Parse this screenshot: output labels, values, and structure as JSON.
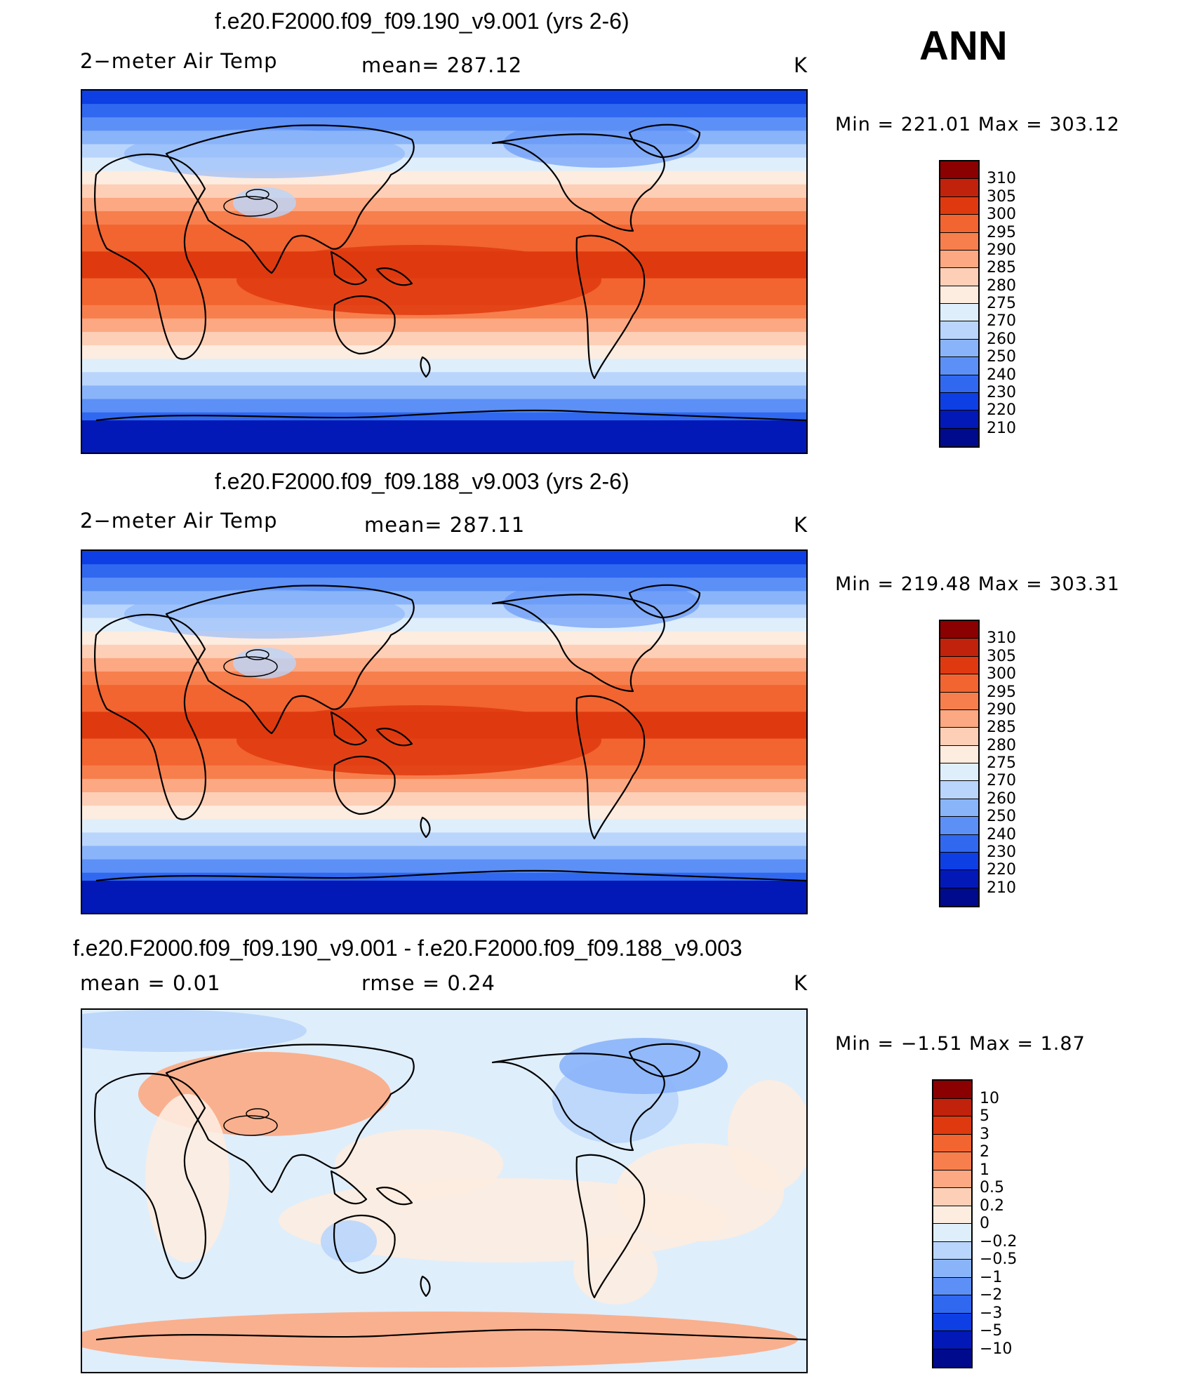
{
  "season": "ANN",
  "panels": [
    {
      "title": "f.e20.F2000.f09_f09.190_v9.001 (yrs 2-6)",
      "left_label": "2−meter Air Temp",
      "center_label": "mean=  287.12",
      "units": "K",
      "minmax": "Min  =  221.01  Max  =  303.12",
      "kind": "abs",
      "colorbar": {
        "levels": [
          "310",
          "305",
          "300",
          "295",
          "290",
          "285",
          "280",
          "275",
          "270",
          "260",
          "250",
          "240",
          "230",
          "220",
          "210"
        ],
        "colors": [
          "#8b0000",
          "#c1220c",
          "#df3a0f",
          "#f26430",
          "#f77f4d",
          "#fca882",
          "#fdcfb6",
          "#fdece0",
          "#dfeefb",
          "#b9d5fb",
          "#8ab4fa",
          "#5c90f6",
          "#3068f0",
          "#0d3fe4",
          "#0219b7",
          "#000a8c"
        ]
      }
    },
    {
      "title": "f.e20.F2000.f09_f09.188_v9.003 (yrs 2-6)",
      "left_label": "2−meter Air Temp",
      "center_label": "mean=  287.11",
      "units": "K",
      "minmax": "Min  =  219.48  Max  =  303.31",
      "kind": "abs",
      "colorbar": {
        "levels": [
          "310",
          "305",
          "300",
          "295",
          "290",
          "285",
          "280",
          "275",
          "270",
          "260",
          "250",
          "240",
          "230",
          "220",
          "210"
        ],
        "colors": [
          "#8b0000",
          "#c1220c",
          "#df3a0f",
          "#f26430",
          "#f77f4d",
          "#fca882",
          "#fdcfb6",
          "#fdece0",
          "#dfeefb",
          "#b9d5fb",
          "#8ab4fa",
          "#5c90f6",
          "#3068f0",
          "#0d3fe4",
          "#0219b7",
          "#000a8c"
        ]
      }
    },
    {
      "title": "f.e20.F2000.f09_f09.190_v9.001 - f.e20.F2000.f09_f09.188_v9.003",
      "left_label": "mean  =      0.01",
      "center_label": "rmse  =      0.24",
      "units": "K",
      "minmax": "Min  =    −1.51  Max  =       1.87",
      "kind": "diff",
      "colorbar": {
        "levels": [
          "10",
          "5",
          "3",
          "2",
          "1",
          "0.5",
          "0.2",
          "0",
          "−0.2",
          "−0.5",
          "−1",
          "−2",
          "−3",
          "−5",
          "−10"
        ],
        "colors": [
          "#8b0000",
          "#c1220c",
          "#df3a0f",
          "#f26430",
          "#f77f4d",
          "#fca882",
          "#fdcfb6",
          "#fdece0",
          "#dfeefb",
          "#b9d5fb",
          "#8ab4fa",
          "#5c90f6",
          "#3068f0",
          "#0d3fe4",
          "#0219b7",
          "#000a8c"
        ]
      }
    }
  ]
}
